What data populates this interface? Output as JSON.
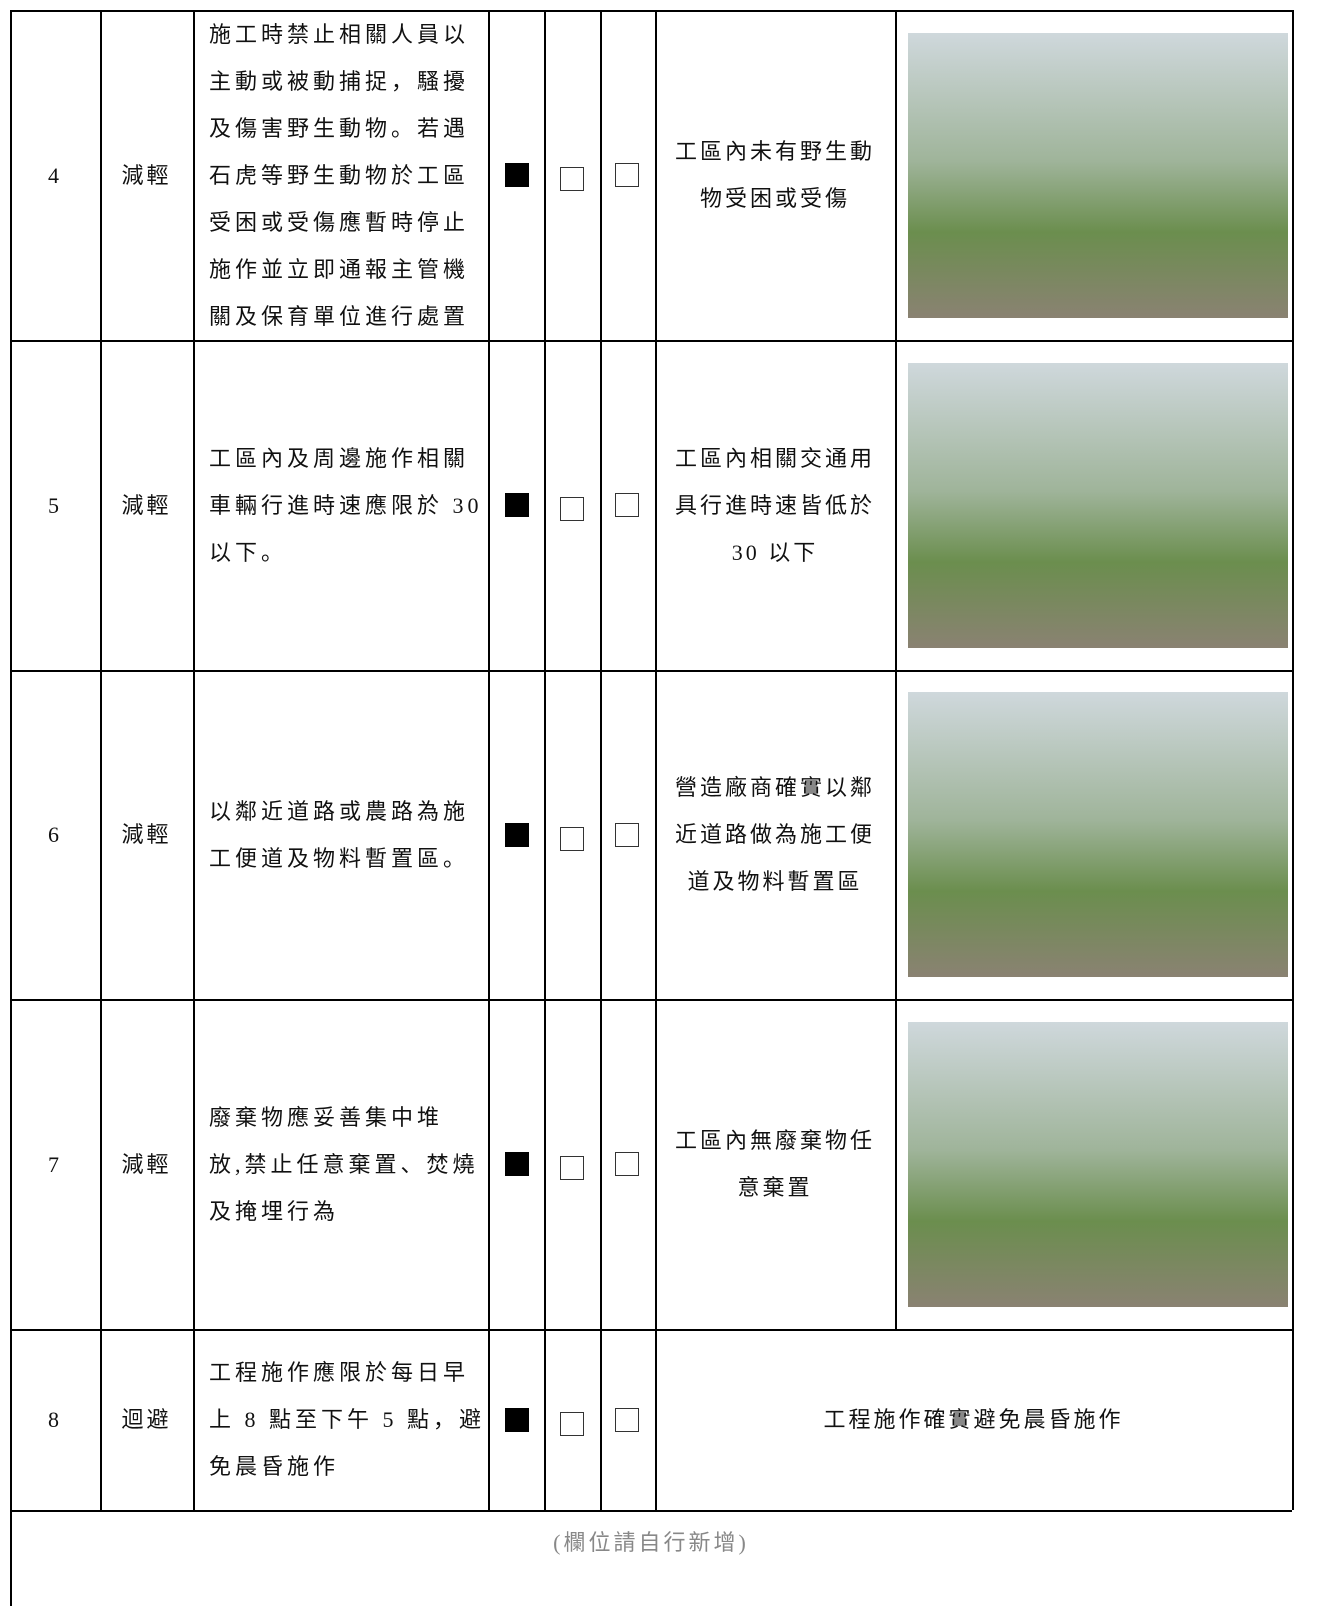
{
  "rows": [
    {
      "no": "4",
      "type": "減輕",
      "measure": [
        "施工時禁止相關人員以",
        "主動或被動捕捉，騷擾",
        "及傷害野生動物。若遇",
        "石虎等野生動物於工區",
        "受困或受傷應暫時停止",
        "施作並立即通報主管機",
        "關及保育單位進行處置"
      ],
      "result": [
        "工區內未有野生動",
        "物受困或受傷"
      ]
    },
    {
      "no": "5",
      "type": "減輕",
      "measure": [
        "工區內及周邊施作相關",
        "車輛行進時速應限於 30",
        "以下。"
      ],
      "result": [
        "工區內相關交通用",
        "具行進時速皆低於",
        "30 以下"
      ]
    },
    {
      "no": "6",
      "type": "減輕",
      "measure": [
        "以鄰近道路或農路為施",
        "工便道及物料暫置區。"
      ],
      "result": [
        "營造廠商確實以鄰",
        "近道路做為施工便",
        "道及物料暫置區"
      ]
    },
    {
      "no": "7",
      "type": "減輕",
      "measure": [
        "廢棄物應妥善集中堆",
        "放,禁止任意棄置、焚燒",
        "及掩埋行為"
      ],
      "result": [
        "工區內無廢棄物任",
        "意棄置"
      ]
    },
    {
      "no": "8",
      "type": "迴避",
      "measure": [
        "工程施作應限於每日早",
        "上 8 點至下午 5 點，避",
        "免晨昏施作"
      ],
      "result": [
        "工程施作確實避免晨昏施作"
      ]
    }
  ],
  "footer_note": "(欄位請自行新增)"
}
